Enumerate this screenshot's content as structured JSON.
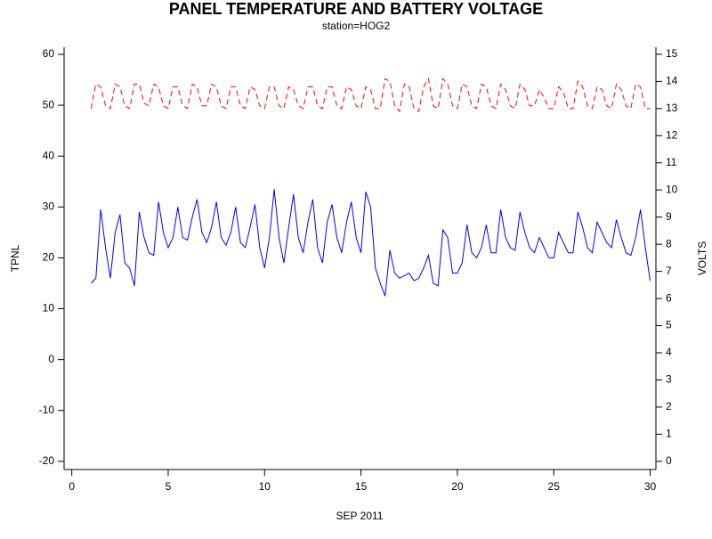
{
  "chart_data": {
    "type": "line",
    "title": "PANEL TEMPERATURE AND BATTERY VOLTAGE",
    "subtitle": "station=HOG2",
    "xlabel": "SEP 2011",
    "ylabel": "TPNL",
    "y2label": "VOLTS",
    "x": [
      1,
      1.25,
      1.5,
      1.75,
      2,
      2.25,
      2.5,
      2.75,
      3,
      3.25,
      3.5,
      3.75,
      4,
      4.25,
      4.5,
      4.75,
      5,
      5.25,
      5.5,
      5.75,
      6,
      6.25,
      6.5,
      6.75,
      7,
      7.25,
      7.5,
      7.75,
      8,
      8.25,
      8.5,
      8.75,
      9,
      9.25,
      9.5,
      9.75,
      10,
      10.25,
      10.5,
      10.75,
      11,
      11.25,
      11.5,
      11.75,
      12,
      12.25,
      12.5,
      12.75,
      13,
      13.25,
      13.5,
      13.75,
      14,
      14.25,
      14.5,
      14.75,
      15,
      15.25,
      15.5,
      15.75,
      16,
      16.25,
      16.5,
      16.75,
      17,
      17.25,
      17.5,
      17.75,
      18,
      18.25,
      18.5,
      18.75,
      19,
      19.25,
      19.5,
      19.75,
      20,
      20.25,
      20.5,
      20.75,
      21,
      21.25,
      21.5,
      21.75,
      22,
      22.25,
      22.5,
      22.75,
      23,
      23.25,
      23.5,
      23.75,
      24,
      24.25,
      24.5,
      24.75,
      25,
      25.25,
      25.5,
      25.75,
      26,
      26.25,
      26.5,
      26.75,
      27,
      27.25,
      27.5,
      27.75,
      28,
      28.25,
      28.5,
      28.75,
      29,
      29.25,
      29.5,
      29.75,
      30
    ],
    "series": [
      {
        "name": "TPNL",
        "color": "#0000ff",
        "axis": "y",
        "dashed": false,
        "values": [
          15,
          16,
          29.5,
          22,
          16,
          25,
          28.5,
          19,
          18,
          14.5,
          29,
          24,
          21,
          20.5,
          31,
          25,
          22,
          24,
          30,
          24,
          23.5,
          28,
          31.5,
          25,
          23,
          26,
          31,
          24,
          22.5,
          25,
          30,
          23,
          22,
          26,
          30.5,
          22,
          18,
          24,
          33.5,
          24,
          19,
          26,
          32.5,
          24,
          21,
          27,
          31.5,
          22,
          19,
          27,
          30.5,
          24,
          21,
          27,
          31,
          24,
          21,
          33,
          30,
          18,
          15,
          12.5,
          21.5,
          17,
          16,
          16.5,
          17,
          15.5,
          16,
          18,
          20.5,
          15,
          14.5,
          25.5,
          24,
          17,
          17,
          19,
          26.5,
          21,
          20,
          22,
          26.5,
          21,
          21,
          29.5,
          24,
          22,
          21.5,
          29,
          25,
          22,
          21,
          24,
          22,
          20,
          20,
          25,
          23,
          21,
          21,
          29,
          26,
          22,
          21,
          27,
          25,
          23,
          22,
          27.5,
          24,
          21,
          20.5,
          24,
          29.5,
          22,
          15.5
        ]
      },
      {
        "name": "VOLTS",
        "color": "#ff0000",
        "axis": "y2",
        "dashed": true,
        "values": [
          13,
          13.9,
          13.8,
          13.1,
          13,
          13.9,
          13.8,
          13.1,
          13,
          13.9,
          13.9,
          13.2,
          13.1,
          13.9,
          13.8,
          13.1,
          13,
          13.8,
          13.8,
          13.1,
          13,
          13.9,
          13.8,
          13.1,
          13.1,
          13.9,
          13.8,
          13.1,
          13,
          13.8,
          13.8,
          13.1,
          13,
          13.8,
          13.7,
          13.1,
          13,
          13.8,
          13.8,
          13.1,
          13,
          13.8,
          13.7,
          13.1,
          13,
          13.8,
          13.8,
          13.1,
          13,
          13.8,
          13.8,
          13.1,
          13,
          13.8,
          13.7,
          13.1,
          13,
          13.8,
          13.7,
          13,
          13,
          14.1,
          14,
          13.1,
          12.9,
          13.9,
          13.8,
          13,
          12.9,
          13.8,
          14.1,
          13.1,
          13,
          14.1,
          13.9,
          13.1,
          13,
          13.9,
          13.8,
          13.1,
          13,
          13.9,
          13.8,
          13.1,
          13,
          13.9,
          13.7,
          13.1,
          13,
          13.9,
          13.7,
          13.1,
          13.1,
          13.7,
          13.4,
          13,
          13,
          13.8,
          13.6,
          13,
          13,
          14,
          13.8,
          13.1,
          13,
          13.8,
          13.7,
          13.1,
          13,
          13.9,
          13.7,
          13.1,
          13,
          13.9,
          13.8,
          13,
          13
        ]
      }
    ],
    "xlim": [
      -0.4,
      30.3
    ],
    "xticks": [
      0,
      5,
      10,
      15,
      20,
      25,
      30
    ],
    "ylim": [
      -21.6,
      61.4
    ],
    "yticks": [
      -20,
      -10,
      0,
      10,
      20,
      30,
      40,
      50,
      60
    ],
    "y2lim": [
      -0.3,
      15.26
    ],
    "y2ticks": [
      0,
      1,
      2,
      3,
      4,
      5,
      6,
      7,
      8,
      9,
      10,
      11,
      12,
      13,
      14,
      15
    ]
  }
}
